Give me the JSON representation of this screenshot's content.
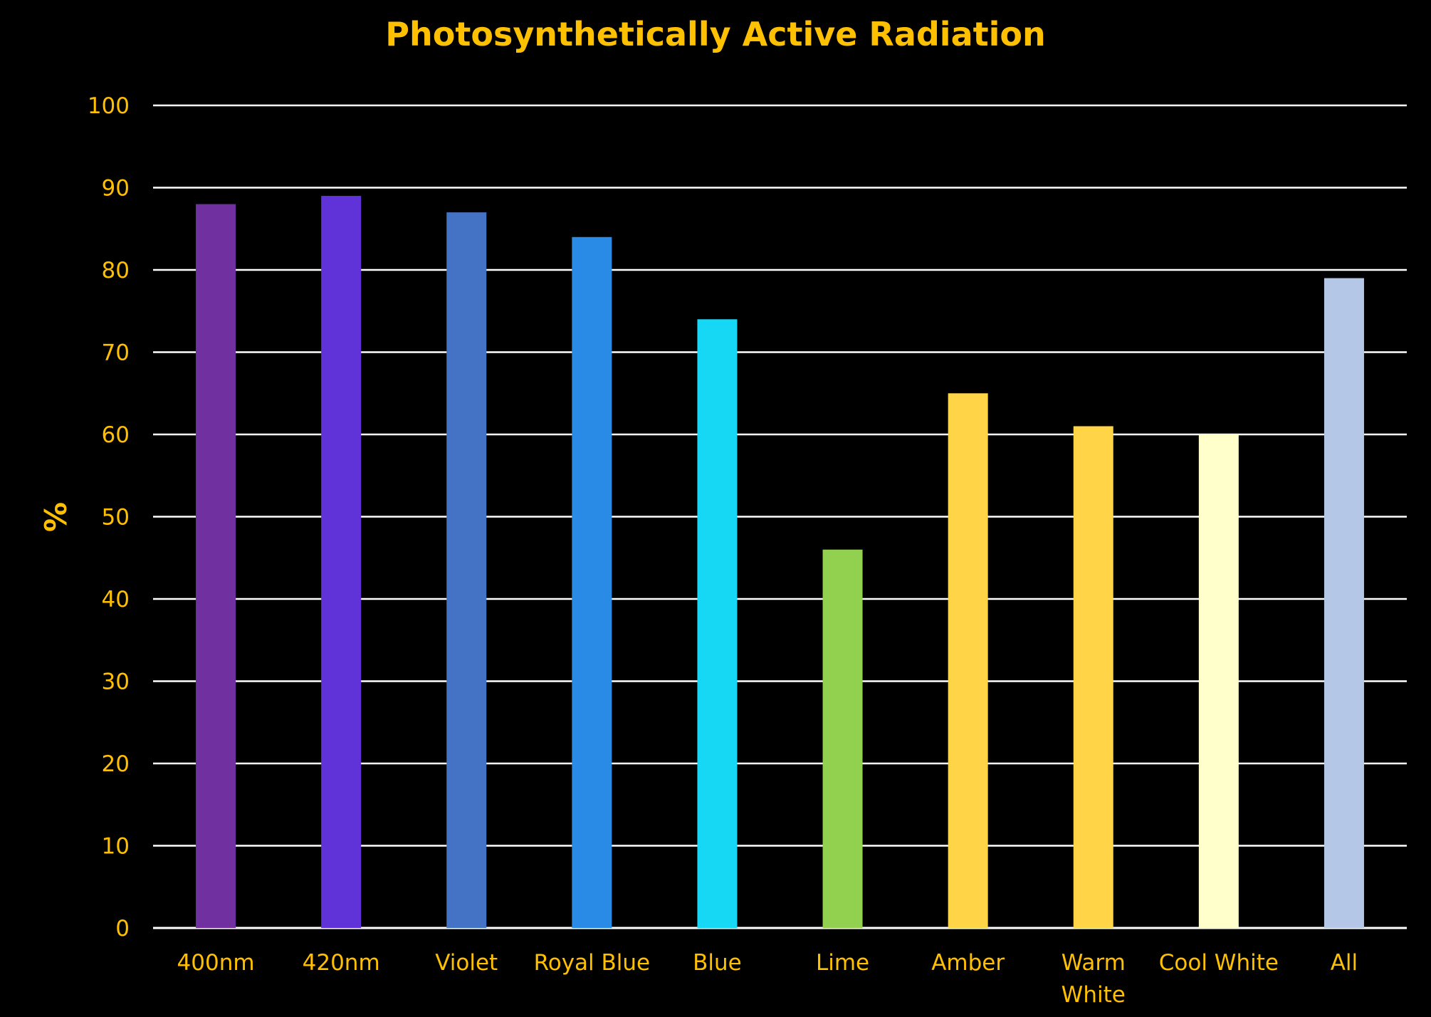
{
  "colors": {
    "background": "#000000",
    "text": "#FFC000",
    "gridline": "#FFFFFF"
  },
  "chart_data": {
    "type": "bar",
    "title": "Photosynthetically Active Radiation",
    "xlabel": "",
    "ylabel": "%",
    "ylim": [
      0,
      100
    ],
    "yticks": [
      0,
      10,
      20,
      30,
      40,
      50,
      60,
      70,
      80,
      90,
      100
    ],
    "grid": true,
    "legend": "none",
    "categories": [
      "400nm",
      "420nm",
      "Violet",
      "Royal Blue",
      "Blue",
      "Lime",
      "Amber",
      "Warm White",
      "Cool White",
      "All"
    ],
    "category_label_lines": [
      [
        "400nm"
      ],
      [
        "420nm"
      ],
      [
        "Violet"
      ],
      [
        "Royal Blue"
      ],
      [
        "Blue"
      ],
      [
        "Lime"
      ],
      [
        "Amber"
      ],
      [
        "Warm",
        "White"
      ],
      [
        "Cool White"
      ],
      [
        "All"
      ]
    ],
    "values": [
      88,
      89,
      87,
      84,
      74,
      46,
      65,
      61,
      60,
      79
    ],
    "bar_colors": [
      "#7030A0",
      "#6033D9",
      "#4472C4",
      "#2A8BE6",
      "#16D8F4",
      "#92D050",
      "#FFD447",
      "#FFD447",
      "#FFFFCC",
      "#B4C7E7"
    ]
  }
}
